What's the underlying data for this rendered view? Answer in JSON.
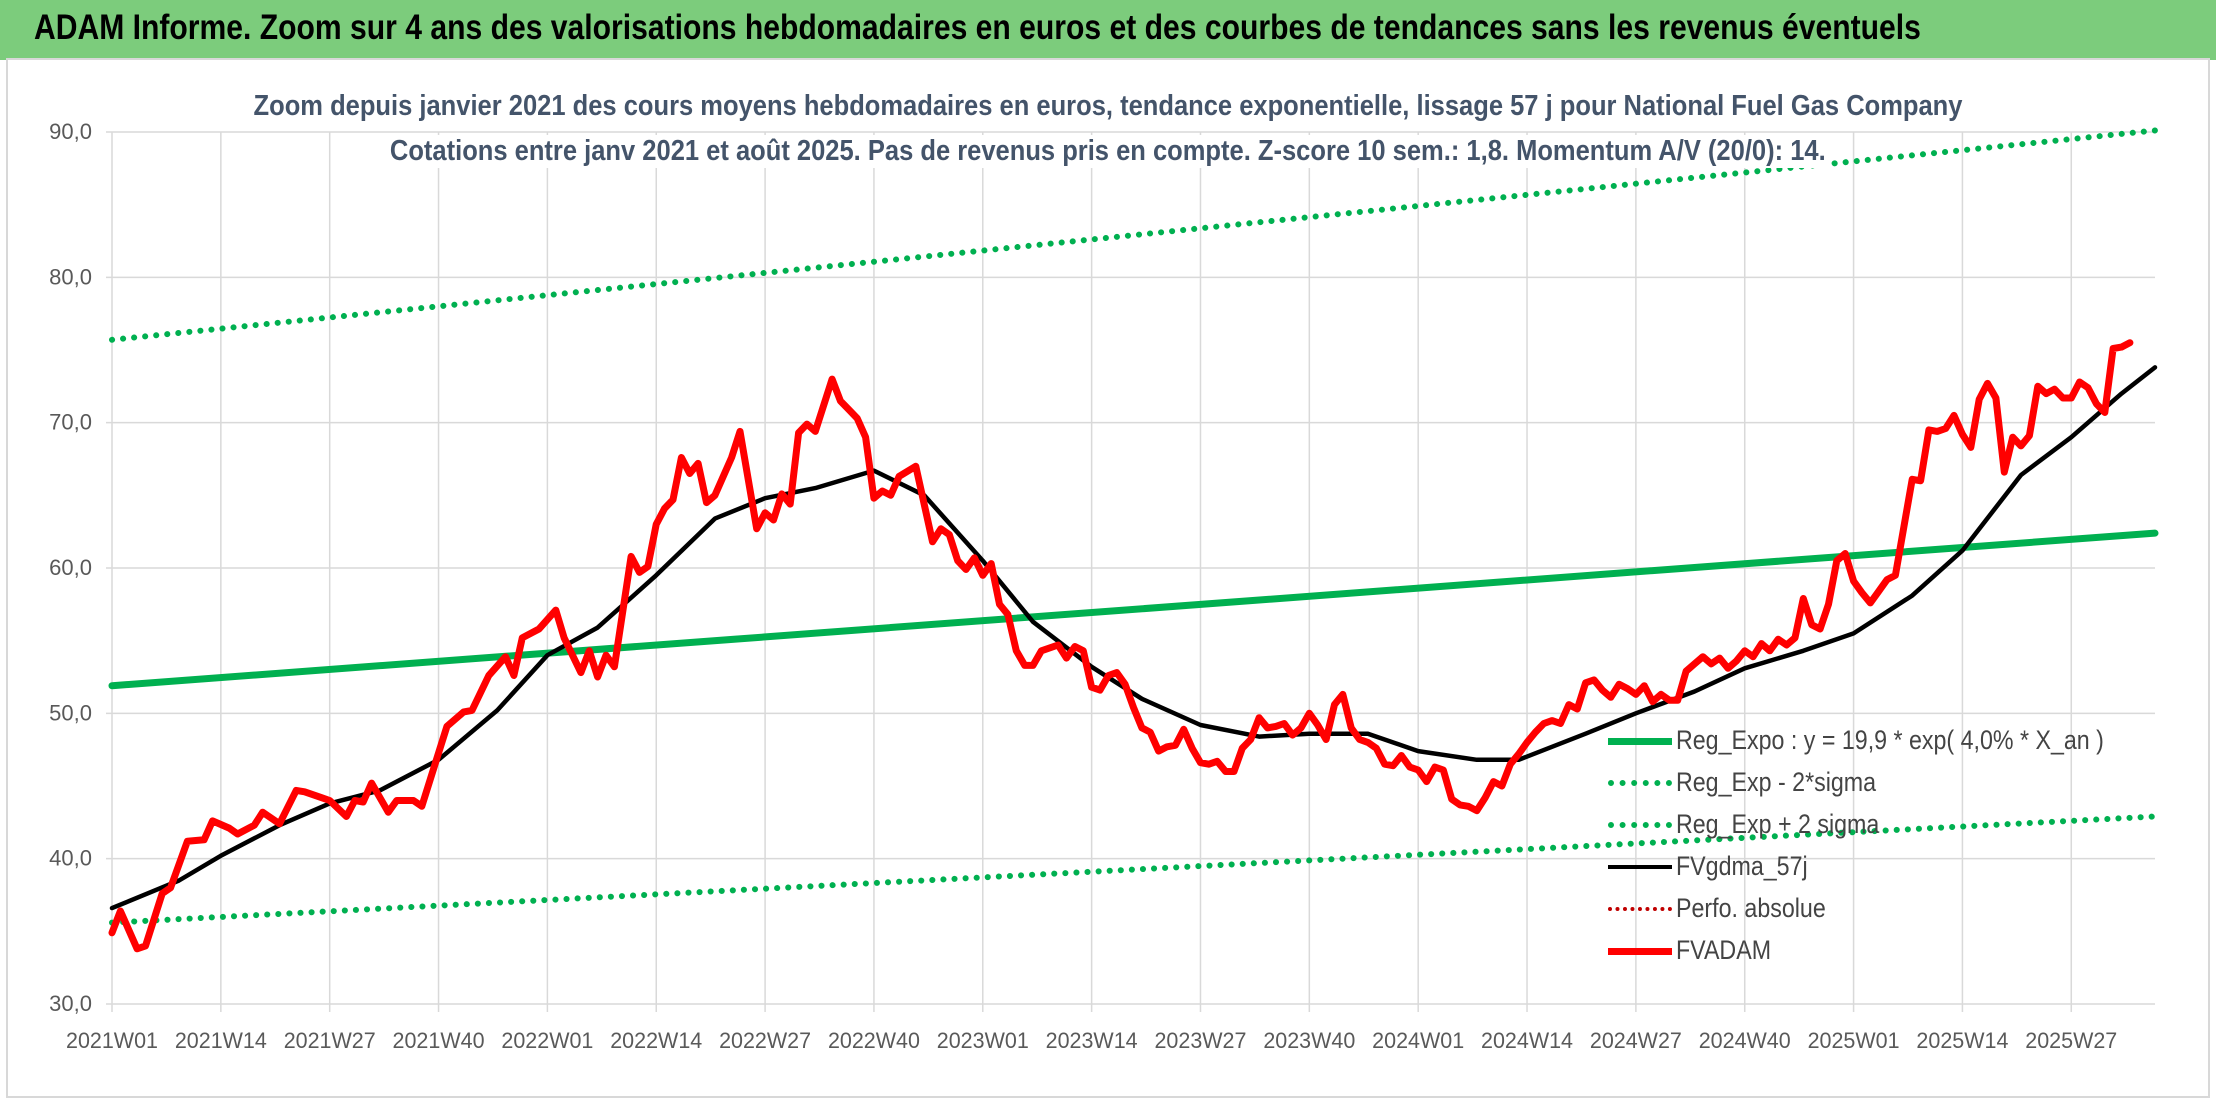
{
  "banner": {
    "text": "ADAM Informe. Zoom sur 4 ans des valorisations hebdomadaires en euros et des courbes de tendances sans les revenus éventuels"
  },
  "colors": {
    "banner_bg": "#7ccc7c",
    "reg": "#00b050",
    "gdma": "#000000",
    "adam": "#ff0000",
    "perfo": "#c00000",
    "grid": "#d9d9d9",
    "text": "#44546a"
  },
  "chart_data": {
    "type": "line",
    "title": "Zoom depuis janvier 2021 des cours moyens hebdomadaires en euros, tendance exponentielle, lissage 57 j pour National Fuel Gas Company",
    "subtitle": "Cotations entre janv 2021 et août 2025. Pas de revenus pris en compte. Z-score 10 sem.: 1,8. Momentum A/V (20/0): 14.",
    "ylim": [
      30,
      90
    ],
    "yticks": [
      "30,0",
      "40,0",
      "50,0",
      "60,0",
      "70,0",
      "80,0",
      "90,0"
    ],
    "x_tick_labels": [
      "2021W01",
      "2021W14",
      "2021W27",
      "2021W40",
      "2022W01",
      "2022W14",
      "2022W27",
      "2022W40",
      "2023W01",
      "2023W14",
      "2023W27",
      "2023W40",
      "2024W01",
      "2024W14",
      "2024W27",
      "2024W40",
      "2025W01",
      "2025W14",
      "2025W27"
    ],
    "x_range_weeks": [
      0,
      244
    ],
    "grid": true,
    "legend_position": "bottom-right",
    "series": [
      {
        "name": "Reg_Expo : y = 19,9 * exp( 4,0% *  X_an )",
        "style": "solid",
        "color": "#00b050",
        "points": [
          [
            0,
            51.9
          ],
          [
            244,
            62.4
          ]
        ]
      },
      {
        "name": "Reg_Exp - 2*sigma",
        "style": "dotted",
        "color": "#00b050",
        "points": [
          [
            0,
            35.6
          ],
          [
            244,
            42.9
          ]
        ]
      },
      {
        "name": "Reg_Exp + 2 sigma",
        "style": "dotted",
        "color": "#00b050",
        "points": [
          [
            0,
            75.7
          ],
          [
            244,
            90.1
          ]
        ]
      },
      {
        "name": "FVgdma_57j",
        "style": "solid",
        "color": "#000000",
        "points": [
          [
            0,
            36.6
          ],
          [
            8,
            38.5
          ],
          [
            13,
            40.2
          ],
          [
            20,
            42.3
          ],
          [
            26,
            43.8
          ],
          [
            32,
            44.7
          ],
          [
            39,
            46.8
          ],
          [
            46,
            50.2
          ],
          [
            52,
            54.0
          ],
          [
            58,
            55.9
          ],
          [
            65,
            59.5
          ],
          [
            72,
            63.4
          ],
          [
            78,
            64.8
          ],
          [
            84,
            65.5
          ],
          [
            91,
            66.7
          ],
          [
            97,
            65.0
          ],
          [
            104,
            60.5
          ],
          [
            110,
            56.3
          ],
          [
            117,
            53.2
          ],
          [
            123,
            51.0
          ],
          [
            130,
            49.2
          ],
          [
            137,
            48.4
          ],
          [
            143,
            48.6
          ],
          [
            150,
            48.6
          ],
          [
            156,
            47.4
          ],
          [
            163,
            46.8
          ],
          [
            168,
            46.8
          ],
          [
            176,
            48.6
          ],
          [
            182,
            50.0
          ],
          [
            189,
            51.5
          ],
          [
            195,
            53.1
          ],
          [
            202,
            54.3
          ],
          [
            208,
            55.5
          ],
          [
            215,
            58.1
          ],
          [
            221,
            61.2
          ],
          [
            228,
            66.4
          ],
          [
            234,
            69.0
          ],
          [
            240,
            72.0
          ],
          [
            244,
            73.8
          ]
        ]
      },
      {
        "name": "Perfo. absolue",
        "style": "dotted",
        "color": "#c00000",
        "points": []
      },
      {
        "name": "FVADAM",
        "style": "solid",
        "color": "#ff0000",
        "points": [
          [
            0,
            34.9
          ],
          [
            1,
            36.4
          ],
          [
            3,
            33.8
          ],
          [
            4,
            34.0
          ],
          [
            6,
            37.6
          ],
          [
            7,
            38.0
          ],
          [
            9,
            41.2
          ],
          [
            11,
            41.3
          ],
          [
            12,
            42.6
          ],
          [
            14,
            42.1
          ],
          [
            15,
            41.7
          ],
          [
            17,
            42.3
          ],
          [
            18,
            43.2
          ],
          [
            20,
            42.4
          ],
          [
            22,
            44.7
          ],
          [
            23,
            44.6
          ],
          [
            25,
            44.2
          ],
          [
            26,
            44.0
          ],
          [
            28,
            42.9
          ],
          [
            29,
            44.0
          ],
          [
            30,
            43.9
          ],
          [
            31,
            45.2
          ],
          [
            33,
            43.2
          ],
          [
            34,
            44.0
          ],
          [
            36,
            44.0
          ],
          [
            37,
            43.6
          ],
          [
            40,
            49.1
          ],
          [
            42,
            50.1
          ],
          [
            43,
            50.2
          ],
          [
            45,
            52.6
          ],
          [
            47,
            53.9
          ],
          [
            48,
            52.6
          ],
          [
            49,
            55.2
          ],
          [
            51,
            55.8
          ],
          [
            53,
            57.1
          ],
          [
            54,
            55.2
          ],
          [
            56,
            52.8
          ],
          [
            57,
            54.3
          ],
          [
            58,
            52.5
          ],
          [
            59,
            54.0
          ],
          [
            60,
            53.2
          ],
          [
            62,
            60.8
          ],
          [
            63,
            59.7
          ],
          [
            64,
            60.1
          ],
          [
            65,
            63.0
          ],
          [
            66,
            64.1
          ],
          [
            67,
            64.7
          ],
          [
            68,
            67.6
          ],
          [
            69,
            66.5
          ],
          [
            70,
            67.2
          ],
          [
            71,
            64.5
          ],
          [
            72,
            65.0
          ],
          [
            74,
            67.6
          ],
          [
            75,
            69.4
          ],
          [
            77,
            62.7
          ],
          [
            78,
            63.8
          ],
          [
            79,
            63.3
          ],
          [
            80,
            65.1
          ],
          [
            81,
            64.4
          ],
          [
            82,
            69.3
          ],
          [
            83,
            69.9
          ],
          [
            84,
            69.4
          ],
          [
            86,
            73.0
          ],
          [
            87,
            71.5
          ],
          [
            88,
            70.9
          ],
          [
            89,
            70.3
          ],
          [
            90,
            69.0
          ],
          [
            91,
            64.8
          ],
          [
            92,
            65.3
          ],
          [
            93,
            65.0
          ],
          [
            94,
            66.3
          ],
          [
            96,
            67.0
          ],
          [
            98,
            61.8
          ],
          [
            99,
            62.7
          ],
          [
            100,
            62.3
          ],
          [
            101,
            60.5
          ],
          [
            102,
            59.9
          ],
          [
            103,
            60.7
          ],
          [
            104,
            59.5
          ],
          [
            105,
            60.3
          ],
          [
            106,
            57.5
          ],
          [
            107,
            56.8
          ],
          [
            108,
            54.3
          ],
          [
            109,
            53.3
          ],
          [
            110,
            53.3
          ],
          [
            111,
            54.3
          ],
          [
            113,
            54.7
          ],
          [
            114,
            53.8
          ],
          [
            115,
            54.6
          ],
          [
            116,
            54.3
          ],
          [
            117,
            51.8
          ],
          [
            118,
            51.6
          ],
          [
            119,
            52.6
          ],
          [
            120,
            52.8
          ],
          [
            121,
            52.0
          ],
          [
            122,
            50.4
          ],
          [
            123,
            49.0
          ],
          [
            124,
            48.7
          ],
          [
            125,
            47.4
          ],
          [
            126,
            47.7
          ],
          [
            127,
            47.8
          ],
          [
            128,
            48.9
          ],
          [
            129,
            47.6
          ],
          [
            130,
            46.6
          ],
          [
            131,
            46.5
          ],
          [
            132,
            46.7
          ],
          [
            133,
            46.0
          ],
          [
            134,
            46.0
          ],
          [
            135,
            47.6
          ],
          [
            136,
            48.2
          ],
          [
            137,
            49.7
          ],
          [
            138,
            49.0
          ],
          [
            139,
            49.1
          ],
          [
            140,
            49.3
          ],
          [
            141,
            48.5
          ],
          [
            142,
            49.0
          ],
          [
            143,
            50.0
          ],
          [
            144,
            49.2
          ],
          [
            145,
            48.2
          ],
          [
            146,
            50.6
          ],
          [
            147,
            51.3
          ],
          [
            148,
            49.0
          ],
          [
            149,
            48.2
          ],
          [
            150,
            48.0
          ],
          [
            151,
            47.6
          ],
          [
            152,
            46.5
          ],
          [
            153,
            46.4
          ],
          [
            154,
            47.1
          ],
          [
            155,
            46.3
          ],
          [
            156,
            46.1
          ],
          [
            157,
            45.3
          ],
          [
            158,
            46.3
          ],
          [
            159,
            46.1
          ],
          [
            160,
            44.1
          ],
          [
            161,
            43.7
          ],
          [
            162,
            43.6
          ],
          [
            163,
            43.3
          ],
          [
            164,
            44.2
          ],
          [
            165,
            45.3
          ],
          [
            166,
            45.0
          ],
          [
            167,
            46.5
          ],
          [
            168,
            47.2
          ],
          [
            169,
            48.0
          ],
          [
            170,
            48.7
          ],
          [
            171,
            49.3
          ],
          [
            172,
            49.5
          ],
          [
            173,
            49.3
          ],
          [
            174,
            50.6
          ],
          [
            175,
            50.3
          ],
          [
            176,
            52.1
          ],
          [
            177,
            52.3
          ],
          [
            178,
            51.6
          ],
          [
            179,
            51.1
          ],
          [
            180,
            52.0
          ],
          [
            181,
            51.7
          ],
          [
            182,
            51.3
          ],
          [
            183,
            51.9
          ],
          [
            184,
            50.8
          ],
          [
            185,
            51.3
          ],
          [
            186,
            50.9
          ],
          [
            187,
            50.9
          ],
          [
            188,
            52.9
          ],
          [
            189,
            53.4
          ],
          [
            190,
            53.9
          ],
          [
            191,
            53.4
          ],
          [
            192,
            53.8
          ],
          [
            193,
            53.1
          ],
          [
            194,
            53.6
          ],
          [
            195,
            54.3
          ],
          [
            196,
            53.9
          ],
          [
            197,
            54.8
          ],
          [
            198,
            54.3
          ],
          [
            199,
            55.1
          ],
          [
            200,
            54.7
          ],
          [
            201,
            55.2
          ],
          [
            202,
            57.9
          ],
          [
            203,
            56.1
          ],
          [
            204,
            55.8
          ],
          [
            205,
            57.5
          ],
          [
            206,
            60.5
          ],
          [
            207,
            61.0
          ],
          [
            208,
            59.1
          ],
          [
            209,
            58.3
          ],
          [
            210,
            57.6
          ],
          [
            211,
            58.4
          ],
          [
            212,
            59.2
          ],
          [
            213,
            59.5
          ],
          [
            214,
            62.8
          ],
          [
            215,
            66.1
          ],
          [
            216,
            66.0
          ],
          [
            217,
            69.5
          ],
          [
            218,
            69.4
          ],
          [
            219,
            69.6
          ],
          [
            220,
            70.5
          ],
          [
            221,
            69.2
          ],
          [
            222,
            68.3
          ],
          [
            223,
            71.6
          ],
          [
            224,
            72.7
          ],
          [
            225,
            71.7
          ],
          [
            226,
            66.6
          ],
          [
            227,
            69.0
          ],
          [
            228,
            68.4
          ],
          [
            229,
            69.1
          ],
          [
            230,
            72.5
          ],
          [
            231,
            72.0
          ],
          [
            232,
            72.3
          ],
          [
            233,
            71.7
          ],
          [
            234,
            71.7
          ],
          [
            235,
            72.8
          ],
          [
            236,
            72.4
          ],
          [
            237,
            71.3
          ],
          [
            238,
            70.7
          ],
          [
            239,
            75.1
          ],
          [
            240,
            75.2
          ],
          [
            241,
            75.5
          ]
        ]
      }
    ]
  }
}
